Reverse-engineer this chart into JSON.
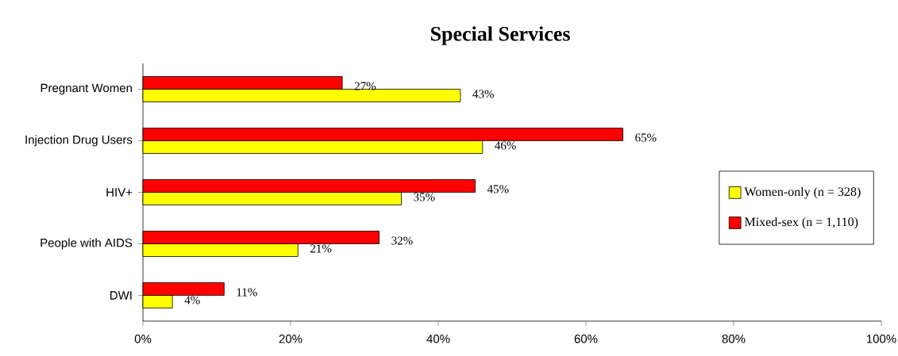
{
  "chart_data": {
    "type": "bar",
    "orientation": "horizontal",
    "title": "Special Services",
    "categories": [
      "Pregnant Women",
      "Injection Drug Users",
      "HIV+",
      "People with AIDS",
      "DWI"
    ],
    "series": [
      {
        "name": "Women-only (n = 328)",
        "color": "#ffff00",
        "values": [
          43,
          46,
          35,
          21,
          4
        ],
        "value_labels": [
          "43%",
          "46%",
          "35%",
          "21%",
          "4%"
        ]
      },
      {
        "name": "Mixed-sex     (n = 1,110)",
        "color": "#ff0000",
        "values": [
          27,
          65,
          45,
          32,
          11
        ],
        "value_labels": [
          "27%",
          "65%",
          "45%",
          "32%",
          "11%"
        ]
      }
    ],
    "xlim": [
      0,
      100
    ],
    "xticks": [
      {
        "value": 0,
        "label": "0%"
      },
      {
        "value": 20,
        "label": "20%"
      },
      {
        "value": 40,
        "label": "40%"
      },
      {
        "value": 60,
        "label": "60%"
      },
      {
        "value": 80,
        "label": "80%"
      },
      {
        "value": 100,
        "label": "100%"
      }
    ],
    "legend": "right",
    "grid": false
  }
}
